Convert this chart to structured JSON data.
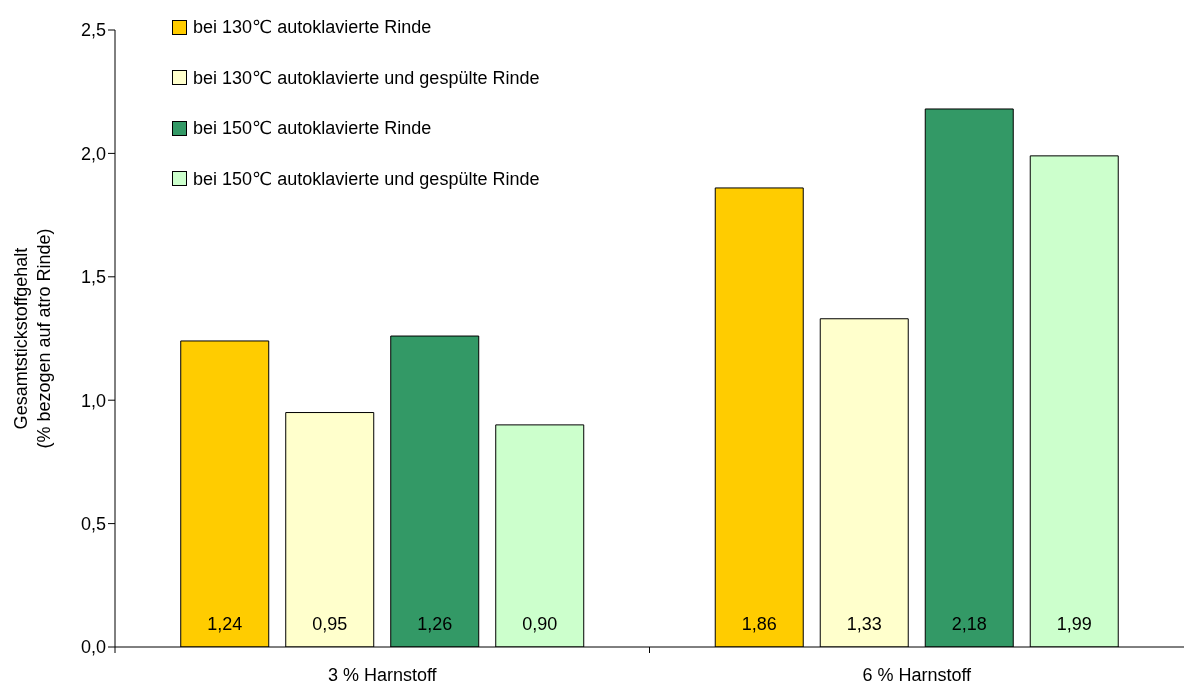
{
  "chart_data": {
    "type": "bar",
    "categories": [
      "3 % Harnstoff",
      "6 % Harnstoff"
    ],
    "ylabel": "Gesamtstickstoffgehalt\n(% bezogen auf atro Rinde)",
    "series": [
      {
        "name": "bei 130℃ autoklavierte Rinde",
        "color": "#ffcc00",
        "values": [
          1.24,
          1.86
        ],
        "value_labels": [
          "1,24",
          "1,86"
        ]
      },
      {
        "name": "bei 130℃ autoklavierte und gespülte Rinde",
        "color": "#ffffcc",
        "values": [
          0.95,
          1.33
        ],
        "value_labels": [
          "0,95",
          "1,33"
        ]
      },
      {
        "name": "bei 150℃ autoklavierte Rinde",
        "color": "#339966",
        "values": [
          1.26,
          2.18
        ],
        "value_labels": [
          "1,26",
          "2,18"
        ]
      },
      {
        "name": "bei 150℃ autoklavierte und gespülte Rinde",
        "color": "#ccffcc",
        "values": [
          0.9,
          1.99
        ],
        "value_labels": [
          "0,90",
          "1,99"
        ]
      }
    ],
    "ylim": [
      0,
      2.5
    ],
    "yticks": [
      {
        "value": 0,
        "label": "0,0"
      },
      {
        "value": 0.5,
        "label": "0,5"
      },
      {
        "value": 1,
        "label": "1,0"
      },
      {
        "value": 1.5,
        "label": "1,5"
      },
      {
        "value": 2,
        "label": "2,0"
      },
      {
        "value": 2.5,
        "label": "2,5"
      }
    ],
    "legend": "top left",
    "grid": false
  }
}
